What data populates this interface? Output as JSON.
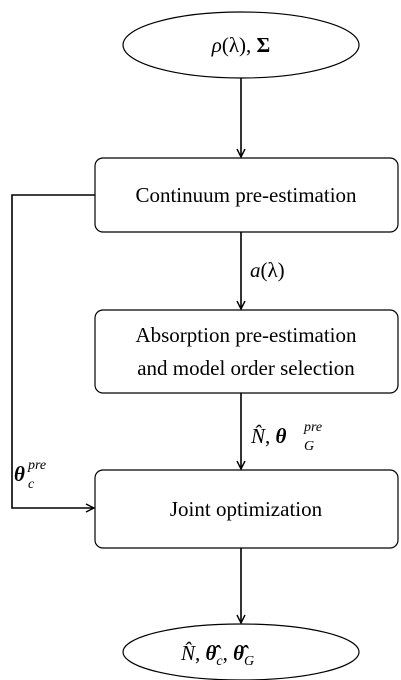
{
  "nodes": [
    {
      "label": [
        "ρ",
        "(λ)",
        ", ",
        "Σ"
      ]
    },
    {
      "label": "Continuum pre-estimation"
    },
    {
      "lines": [
        "Absorption pre-estimation",
        "and model order selection"
      ]
    },
    {
      "label": "Joint optimization"
    },
    {
      "label": [
        "N̂",
        ", ",
        "θ̂",
        "c",
        ", ",
        "θ̂",
        "G"
      ]
    }
  ],
  "edges": [
    {
      "label": [
        "a",
        "(λ)"
      ]
    },
    {
      "label": [
        "N̂",
        ", ",
        "θ",
        "pre",
        "G"
      ]
    },
    {
      "label": [
        "θ",
        "pre",
        "c"
      ]
    }
  ]
}
